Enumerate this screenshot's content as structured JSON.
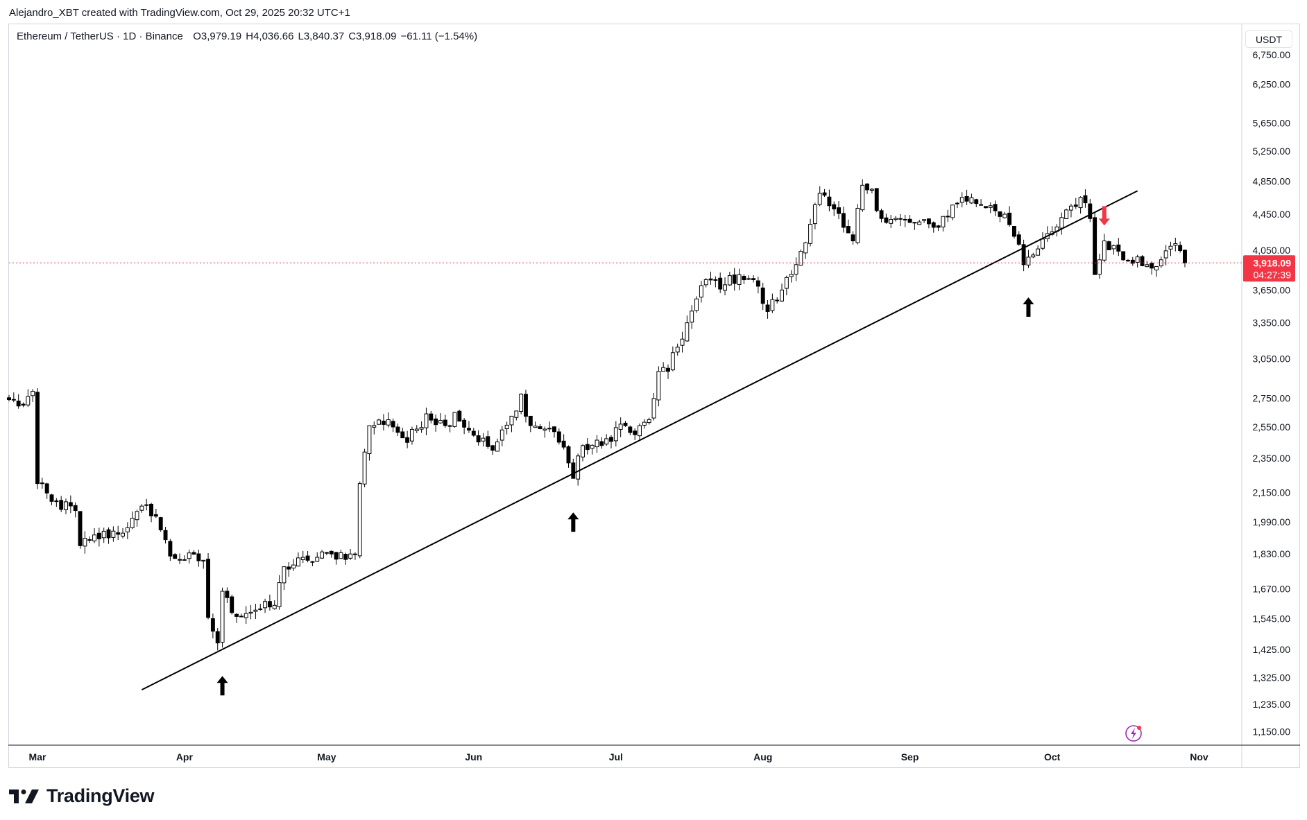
{
  "header": {
    "author_line": "Alejandro_XBT created with TradingView.com, Oct 29, 2025 20:32 UTC+1"
  },
  "legend": {
    "symbol": "Ethereum / TetherUS · 1D · Binance",
    "open": "O3,979.19",
    "high": "H4,036.66",
    "low": "L3,840.37",
    "close": "C3,918.09",
    "change": "−61.11 (−1.54%)"
  },
  "currency_label": "USDT",
  "last_price": {
    "price": "3,918.09",
    "countdown": "04:27:39",
    "value": 3918.09
  },
  "footer": {
    "brand": "TradingView"
  },
  "colors": {
    "up_candle_fill": "#ffffff",
    "down_candle_fill": "#000000",
    "candle_border": "#000000",
    "trendline": "#000000",
    "price_tag": "#f23645",
    "sell_arrow": "#f23645",
    "buy_arrow": "#000000",
    "grid": "#d1d4dc"
  },
  "chart_data": {
    "type": "candlestick",
    "scale": "log",
    "ylim": [
      1110,
      7300
    ],
    "y_ticks": [
      "6,750.00",
      "6,250.00",
      "5,650.00",
      "5,250.00",
      "4,850.00",
      "4,450.00",
      "4,050.00",
      "3,650.00",
      "3,350.00",
      "3,050.00",
      "2,750.00",
      "2,550.00",
      "2,350.00",
      "2,150.00",
      "1,990.00",
      "1,830.00",
      "1,670.00",
      "1,545.00",
      "1,425.00",
      "1,325.00",
      "1,235.00",
      "1,150.00"
    ],
    "x_ticks": [
      "Mar",
      "Apr",
      "May",
      "Jun",
      "Jul",
      "Aug",
      "Sep",
      "Oct",
      "Nov"
    ],
    "x_range": [
      "2025-02-23",
      "2025-11-10"
    ],
    "date_ticks": [
      "2025-03-01",
      "2025-04-01",
      "2025-05-01",
      "2025-06-01",
      "2025-07-01",
      "2025-08-01",
      "2025-09-01",
      "2025-10-01",
      "2025-11-01"
    ],
    "trendline": {
      "start": [
        "2025-03-23",
        1283
      ],
      "end": [
        "2025-10-19",
        4730
      ]
    },
    "buy_arrows": [
      [
        "2025-04-09",
        1330
      ],
      [
        "2025-06-22",
        2040
      ],
      [
        "2025-09-26",
        3580
      ]
    ],
    "sell_arrows": [
      [
        "2025-10-12",
        4320
      ]
    ],
    "keypoints": [
      [
        "2025-02-23",
        2740
      ],
      [
        "2025-02-26",
        2700
      ],
      [
        "2025-02-28",
        2800
      ],
      [
        "2025-03-01",
        2200
      ],
      [
        "2025-03-04",
        2100
      ],
      [
        "2025-03-09",
        2050
      ],
      [
        "2025-03-10",
        1870
      ],
      [
        "2025-03-12",
        1900
      ],
      [
        "2025-03-20",
        1960
      ],
      [
        "2025-03-24",
        2080
      ],
      [
        "2025-03-26",
        2020
      ],
      [
        "2025-03-29",
        1820
      ],
      [
        "2025-04-05",
        1800
      ],
      [
        "2025-04-06",
        1550
      ],
      [
        "2025-04-08",
        1450
      ],
      [
        "2025-04-09",
        1660
      ],
      [
        "2025-04-11",
        1570
      ],
      [
        "2025-04-16",
        1580
      ],
      [
        "2025-04-20",
        1600
      ],
      [
        "2025-04-22",
        1770
      ],
      [
        "2025-04-27",
        1800
      ],
      [
        "2025-05-02",
        1830
      ],
      [
        "2025-05-06",
        1830
      ],
      [
        "2025-05-07",
        1830
      ],
      [
        "2025-05-08",
        2200
      ],
      [
        "2025-05-10",
        2560
      ],
      [
        "2025-05-14",
        2600
      ],
      [
        "2025-05-18",
        2450
      ],
      [
        "2025-05-22",
        2640
      ],
      [
        "2025-05-26",
        2560
      ],
      [
        "2025-05-28",
        2650
      ],
      [
        "2025-05-31",
        2530
      ],
      [
        "2025-06-05",
        2400
      ],
      [
        "2025-06-10",
        2660
      ],
      [
        "2025-06-11",
        2780
      ],
      [
        "2025-06-13",
        2560
      ],
      [
        "2025-06-18",
        2520
      ],
      [
        "2025-06-20",
        2420
      ],
      [
        "2025-06-22",
        2230
      ],
      [
        "2025-06-24",
        2430
      ],
      [
        "2025-06-28",
        2430
      ],
      [
        "2025-07-02",
        2570
      ],
      [
        "2025-07-05",
        2500
      ],
      [
        "2025-07-08",
        2600
      ],
      [
        "2025-07-10",
        2950
      ],
      [
        "2025-07-12",
        2950
      ],
      [
        "2025-07-16",
        3350
      ],
      [
        "2025-07-20",
        3750
      ],
      [
        "2025-07-24",
        3700
      ],
      [
        "2025-07-27",
        3800
      ],
      [
        "2025-07-30",
        3750
      ],
      [
        "2025-08-02",
        3450
      ],
      [
        "2025-08-05",
        3650
      ],
      [
        "2025-08-08",
        3900
      ],
      [
        "2025-08-13",
        4700
      ],
      [
        "2025-08-15",
        4550
      ],
      [
        "2025-08-18",
        4300
      ],
      [
        "2025-08-20",
        4150
      ],
      [
        "2025-08-22",
        4800
      ],
      [
        "2025-08-24",
        4750
      ],
      [
        "2025-08-26",
        4400
      ],
      [
        "2025-09-02",
        4350
      ],
      [
        "2025-09-06",
        4300
      ],
      [
        "2025-09-12",
        4650
      ],
      [
        "2025-09-18",
        4550
      ],
      [
        "2025-09-21",
        4450
      ],
      [
        "2025-09-23",
        4200
      ],
      [
        "2025-09-25",
        3900
      ],
      [
        "2025-09-27",
        4000
      ],
      [
        "2025-10-01",
        4250
      ],
      [
        "2025-10-04",
        4500
      ],
      [
        "2025-10-07",
        4650
      ],
      [
        "2025-10-09",
        4400
      ],
      [
        "2025-10-10",
        3800
      ],
      [
        "2025-10-12",
        4150
      ],
      [
        "2025-10-14",
        4100
      ],
      [
        "2025-10-16",
        3950
      ],
      [
        "2025-10-19",
        3980
      ],
      [
        "2025-10-21",
        3900
      ],
      [
        "2025-10-24",
        3950
      ],
      [
        "2025-10-27",
        4120
      ],
      [
        "2025-10-29",
        3918.09
      ]
    ]
  }
}
